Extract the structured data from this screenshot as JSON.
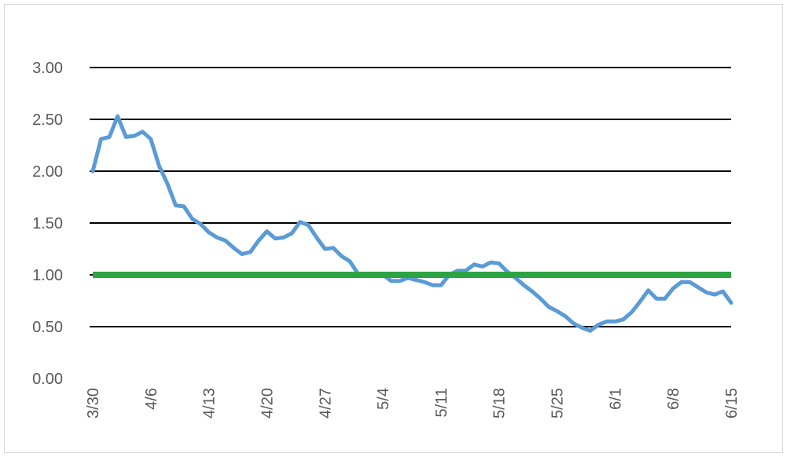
{
  "chart_data": {
    "type": "line",
    "title": "",
    "xlabel": "",
    "ylabel": "",
    "ylim": [
      0,
      3
    ],
    "y_ticks": [
      "0.00",
      "0.50",
      "1.00",
      "1.50",
      "2.00",
      "2.50",
      "3.00"
    ],
    "y_tick_values": [
      0,
      0.5,
      1.0,
      1.5,
      2.0,
      2.5,
      3.0
    ],
    "x_tick_labels": [
      "3/30",
      "4/6",
      "4/13",
      "4/20",
      "4/27",
      "5/4",
      "5/11",
      "5/18",
      "5/25",
      "6/1",
      "6/8",
      "6/15"
    ],
    "x_tick_days": [
      0,
      7,
      14,
      21,
      28,
      35,
      42,
      49,
      56,
      63,
      70,
      77
    ],
    "x_range_days": [
      0,
      77
    ],
    "grid": true,
    "legend": "none",
    "series": [
      {
        "color": "#5b9bd5",
        "x": [
          0,
          1,
          2,
          3,
          4,
          5,
          6,
          7,
          8,
          9,
          10,
          11,
          12,
          13,
          14,
          15,
          16,
          17,
          18,
          19,
          20,
          21,
          22,
          23,
          24,
          25,
          26,
          27,
          28,
          29,
          30,
          31,
          32,
          33,
          34,
          35,
          36,
          37,
          38,
          39,
          40,
          41,
          42,
          43,
          44,
          45,
          46,
          47,
          48,
          49,
          50,
          51,
          52,
          53,
          54,
          55,
          56,
          57,
          58,
          59,
          60,
          61,
          62,
          63,
          64,
          65,
          66,
          67,
          68,
          69,
          70,
          71,
          72,
          73,
          74,
          75,
          76,
          77
        ],
        "values": [
          2.0,
          2.31,
          2.33,
          2.53,
          2.33,
          2.34,
          2.38,
          2.31,
          2.05,
          1.88,
          1.67,
          1.66,
          1.54,
          1.49,
          1.41,
          1.36,
          1.33,
          1.26,
          1.2,
          1.22,
          1.33,
          1.42,
          1.35,
          1.36,
          1.4,
          1.51,
          1.48,
          1.36,
          1.25,
          1.26,
          1.18,
          1.13,
          1.01,
          0.99,
          1.0,
          1.0,
          0.94,
          0.94,
          0.97,
          0.95,
          0.93,
          0.9,
          0.9,
          1.0,
          1.04,
          1.04,
          1.1,
          1.08,
          1.12,
          1.11,
          1.03,
          0.97,
          0.9,
          0.84,
          0.77,
          0.69,
          0.65,
          0.6,
          0.53,
          0.49,
          0.46,
          0.52,
          0.55,
          0.55,
          0.57,
          0.64,
          0.74,
          0.85,
          0.77,
          0.77,
          0.87,
          0.93,
          0.93,
          0.88,
          0.83,
          0.81,
          0.84,
          0.73
        ]
      },
      {
        "color": "#2ca444",
        "x": [
          0,
          77
        ],
        "values": [
          1.0,
          1.0
        ]
      }
    ]
  }
}
